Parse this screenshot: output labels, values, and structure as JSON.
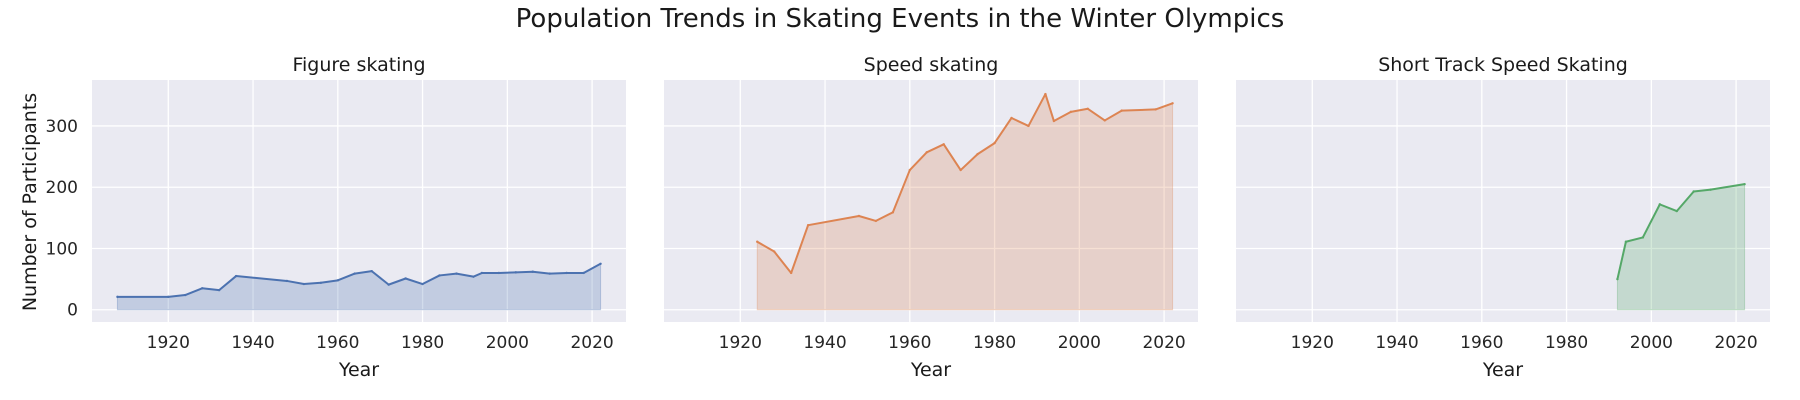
{
  "chart_data": {
    "type": "area",
    "title": "Population Trends in Skating Events in the Winter Olympics",
    "ylabel": "Number of Participants",
    "xlim": [
      1902,
      2028
    ],
    "ylim": [
      -20,
      375
    ],
    "x_ticks": [
      1920,
      1940,
      1960,
      1980,
      2000,
      2020
    ],
    "y_ticks": [
      0,
      100,
      200,
      300
    ],
    "grid": true,
    "sharey": true,
    "panels": [
      {
        "title": "Figure skating",
        "xlabel": "Year",
        "color": "#4c72b0",
        "x": [
          1908,
          1920,
          1924,
          1928,
          1932,
          1936,
          1948,
          1952,
          1956,
          1960,
          1964,
          1968,
          1972,
          1976,
          1980,
          1984,
          1988,
          1992,
          1994,
          1998,
          2002,
          2006,
          2010,
          2014,
          2018,
          2022
        ],
        "y": [
          21,
          21,
          24,
          35,
          32,
          55,
          47,
          42,
          44,
          48,
          59,
          63,
          41,
          51,
          42,
          56,
          59,
          54,
          60,
          60,
          61,
          62,
          59,
          60,
          60,
          75
        ]
      },
      {
        "title": "Speed skating",
        "xlabel": "Year",
        "color": "#dd8452",
        "x": [
          1924,
          1928,
          1932,
          1936,
          1948,
          1952,
          1956,
          1960,
          1964,
          1968,
          1972,
          1976,
          1980,
          1984,
          1988,
          1992,
          1994,
          1998,
          2002,
          2006,
          2010,
          2018,
          2022
        ],
        "y": [
          111,
          95,
          60,
          138,
          153,
          145,
          159,
          228,
          257,
          270,
          228,
          254,
          272,
          313,
          300,
          352,
          308,
          323,
          328,
          309,
          325,
          327,
          337
        ]
      },
      {
        "title": "Short Track Speed Skating",
        "xlabel": "Year",
        "color": "#55a868",
        "x": [
          1992,
          1994,
          1998,
          2002,
          2006,
          2010,
          2014,
          2022
        ],
        "y": [
          50,
          111,
          118,
          172,
          161,
          193,
          196,
          205
        ]
      }
    ]
  }
}
